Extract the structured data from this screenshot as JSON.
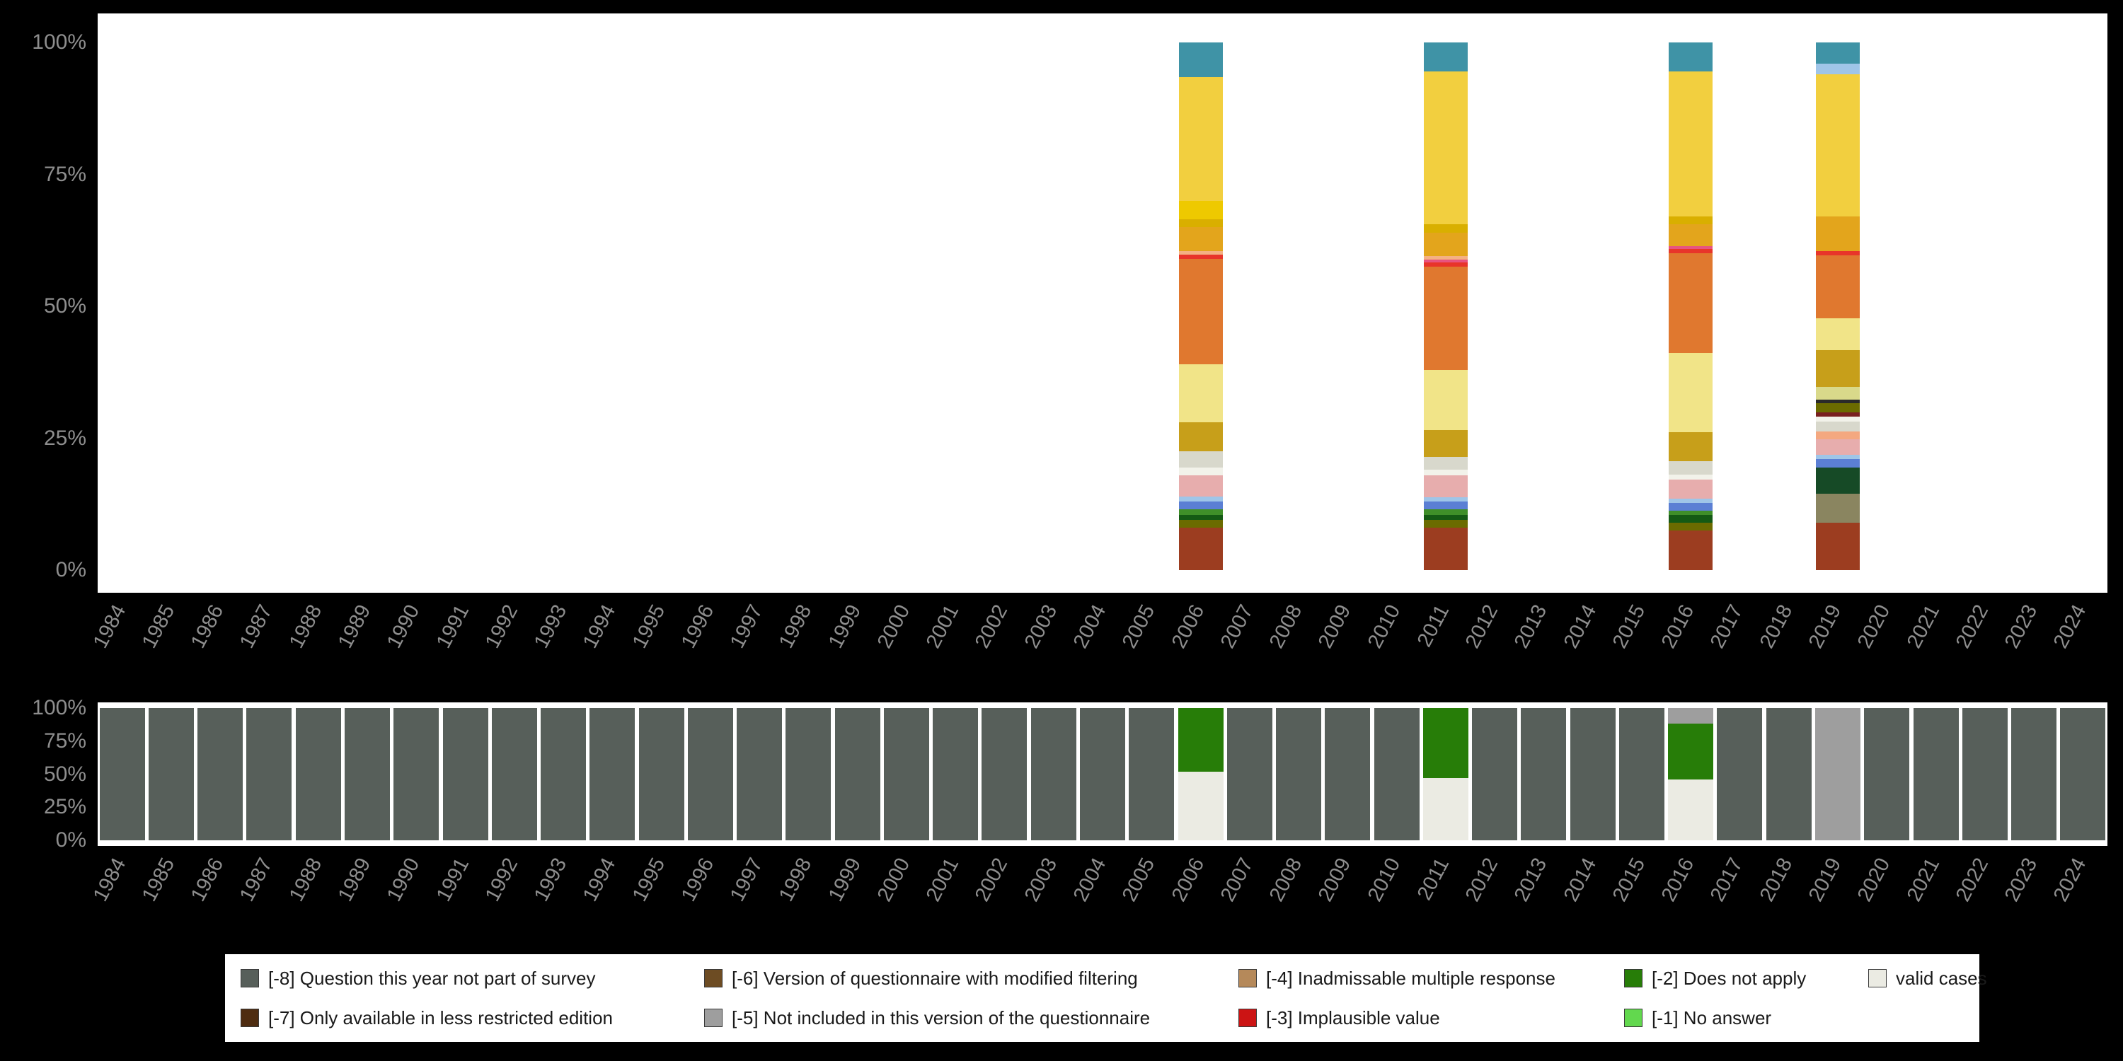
{
  "page": {
    "background": "#000000",
    "panel_background": "#ffffff",
    "axis_text_color": "#8e8e8e"
  },
  "axes": {
    "years": [
      "1984",
      "1985",
      "1986",
      "1987",
      "1988",
      "1989",
      "1990",
      "1991",
      "1992",
      "1993",
      "1994",
      "1995",
      "1996",
      "1997",
      "1998",
      "1999",
      "2000",
      "2001",
      "2002",
      "2003",
      "2004",
      "2005",
      "2006",
      "2007",
      "2008",
      "2009",
      "2010",
      "2011",
      "2012",
      "2013",
      "2014",
      "2015",
      "2016",
      "2017",
      "2018",
      "2019",
      "2020",
      "2021",
      "2022",
      "2023",
      "2024"
    ],
    "pct_ticks": [
      "0%",
      "25%",
      "50%",
      "75%",
      "100%"
    ]
  },
  "legend": {
    "entries": [
      {
        "label": "[-8] Question this year not part of survey",
        "color": "#575f5a",
        "row": 1,
        "col": 1
      },
      {
        "label": "[-7] Only available in less restricted edition",
        "color": "#4e2c10",
        "row": 2,
        "col": 1
      },
      {
        "label": "[-6] Version of questionnaire with modified filtering",
        "color": "#6d4c23",
        "row": 1,
        "col": 2
      },
      {
        "label": "[-5] Not included in this version of the questionnaire",
        "color": "#9e9e9e",
        "row": 2,
        "col": 2
      },
      {
        "label": "[-4] Inadmissable multiple response",
        "color": "#b5895a",
        "row": 1,
        "col": 3
      },
      {
        "label": "[-3] Implausible value",
        "color": "#cc1414",
        "row": 2,
        "col": 3
      },
      {
        "label": "[-2] Does not apply",
        "color": "#277d08",
        "row": 1,
        "col": 4
      },
      {
        "label": "[-1] No answer",
        "color": "#62d84e",
        "row": 2,
        "col": 4
      },
      {
        "label": "valid cases",
        "color": "#ebebe3",
        "row": 1,
        "col": 5
      }
    ]
  },
  "chart_data": [
    {
      "type": "bar",
      "name": "answer-category-distribution-per-year",
      "stacking": "percent",
      "ylim": [
        0,
        100
      ],
      "yticks": [
        "0%",
        "25%",
        "50%",
        "75%",
        "100%"
      ],
      "note": "stacked percentage distribution of answer categories; bars only for years with data; segments listed bottom-to-top",
      "bars": {
        "2006": [
          {
            "color": "#9c3d20",
            "pct": 8
          },
          {
            "color": "#6b6b00",
            "pct": 1.5
          },
          {
            "color": "#145a14",
            "pct": 1
          },
          {
            "color": "#3f8f29",
            "pct": 1
          },
          {
            "color": "#5b7fd4",
            "pct": 1.5
          },
          {
            "color": "#9fc5e8",
            "pct": 1
          },
          {
            "color": "#e7adad",
            "pct": 4
          },
          {
            "color": "#f2f2ea",
            "pct": 1.5
          },
          {
            "color": "#d8d8cc",
            "pct": 3
          },
          {
            "color": "#c79f1a",
            "pct": 5.5
          },
          {
            "color": "#f1e488",
            "pct": 11
          },
          {
            "color": "#e0782f",
            "pct": 20
          },
          {
            "color": "#e8352a",
            "pct": 0.8
          },
          {
            "color": "#f4b183",
            "pct": 0.7
          },
          {
            "color": "#e3a51c",
            "pct": 4.5
          },
          {
            "color": "#d9af00",
            "pct": 1.5
          },
          {
            "color": "#eec900",
            "pct": 3.5
          },
          {
            "color": "#f2cf3f",
            "pct": 23.5
          },
          {
            "color": "#3f93a6",
            "pct": 6.5
          }
        ],
        "2011": [
          {
            "color": "#9c3d20",
            "pct": 8
          },
          {
            "color": "#6b6b00",
            "pct": 1.5
          },
          {
            "color": "#145a14",
            "pct": 1
          },
          {
            "color": "#3f8f29",
            "pct": 1
          },
          {
            "color": "#5b7fd4",
            "pct": 1.5
          },
          {
            "color": "#9fc5e8",
            "pct": 0.8
          },
          {
            "color": "#e7adad",
            "pct": 4.2
          },
          {
            "color": "#f2f2ea",
            "pct": 1
          },
          {
            "color": "#d8d8cc",
            "pct": 2.5
          },
          {
            "color": "#c79f1a",
            "pct": 5
          },
          {
            "color": "#f1e488",
            "pct": 11.5
          },
          {
            "color": "#e0782f",
            "pct": 19.5
          },
          {
            "color": "#e8352a",
            "pct": 0.8
          },
          {
            "color": "#e75480",
            "pct": 0.5
          },
          {
            "color": "#f4b183",
            "pct": 0.7
          },
          {
            "color": "#e3a51c",
            "pct": 4.5
          },
          {
            "color": "#d9af00",
            "pct": 1.5
          },
          {
            "color": "#f2cf3f",
            "pct": 29
          },
          {
            "color": "#3f93a6",
            "pct": 5.5
          }
        ],
        "2016": [
          {
            "color": "#9c3d20",
            "pct": 7.5
          },
          {
            "color": "#6b6b00",
            "pct": 1.5
          },
          {
            "color": "#145a14",
            "pct": 1.5
          },
          {
            "color": "#3f8f29",
            "pct": 0.8
          },
          {
            "color": "#5b7fd4",
            "pct": 1.5
          },
          {
            "color": "#9fc5e8",
            "pct": 0.8
          },
          {
            "color": "#e7adad",
            "pct": 3.5
          },
          {
            "color": "#f2f2ea",
            "pct": 1
          },
          {
            "color": "#d8d8cc",
            "pct": 2.5
          },
          {
            "color": "#c79f1a",
            "pct": 5.5
          },
          {
            "color": "#f1e488",
            "pct": 15
          },
          {
            "color": "#e0782f",
            "pct": 19
          },
          {
            "color": "#e8352a",
            "pct": 0.8
          },
          {
            "color": "#e75480",
            "pct": 0.5
          },
          {
            "color": "#e3a51c",
            "pct": 4.2
          },
          {
            "color": "#d9af00",
            "pct": 1.5
          },
          {
            "color": "#f2cf3f",
            "pct": 27.4
          },
          {
            "color": "#3f93a6",
            "pct": 5.5
          }
        ],
        "2019": [
          {
            "color": "#9c3d20",
            "pct": 9
          },
          {
            "color": "#8a8560",
            "pct": 5.5
          },
          {
            "color": "#164a26",
            "pct": 5
          },
          {
            "color": "#5b7fd4",
            "pct": 1.5
          },
          {
            "color": "#9fc5e8",
            "pct": 0.8
          },
          {
            "color": "#e7adad",
            "pct": 3
          },
          {
            "color": "#f4a880",
            "pct": 1.5
          },
          {
            "color": "#d8d8cc",
            "pct": 1.8
          },
          {
            "color": "#f2f2ea",
            "pct": 1
          },
          {
            "color": "#7a2020",
            "pct": 0.8
          },
          {
            "color": "#6b6b00",
            "pct": 1.8
          },
          {
            "color": "#2a2a2a",
            "pct": 0.6
          },
          {
            "color": "#d9d98a",
            "pct": 2.5
          },
          {
            "color": "#c79f1a",
            "pct": 6.9
          },
          {
            "color": "#f1e488",
            "pct": 6
          },
          {
            "color": "#e0782f",
            "pct": 12
          },
          {
            "color": "#e8352a",
            "pct": 0.8
          },
          {
            "color": "#e3a51c",
            "pct": 6.5
          },
          {
            "color": "#f2cf3f",
            "pct": 27
          },
          {
            "color": "#9fc5e8",
            "pct": 2
          },
          {
            "color": "#3f93a6",
            "pct": 4
          }
        ]
      }
    },
    {
      "type": "bar",
      "name": "missing-vs-valid-cases-per-year",
      "stacking": "percent",
      "ylim": [
        0,
        100
      ],
      "yticks": [
        "0%",
        "25%",
        "50%",
        "75%",
        "100%"
      ],
      "segment_colors": {
        "[-8]": "#575f5a",
        "[-7]": "#4e2c10",
        "[-6]": "#6d4c23",
        "[-5]": "#9e9e9e",
        "[-4]": "#b5895a",
        "[-3]": "#cc1414",
        "[-2]": "#277d08",
        "[-1]": "#62d84e",
        "valid": "#ebebe3"
      },
      "default_stack": [
        {
          "key": "[-8]",
          "pct": 100
        }
      ],
      "overrides": {
        "2006": [
          {
            "key": "valid",
            "pct": 52
          },
          {
            "key": "[-2]",
            "pct": 48
          }
        ],
        "2011": [
          {
            "key": "valid",
            "pct": 47
          },
          {
            "key": "[-2]",
            "pct": 53
          }
        ],
        "2016": [
          {
            "key": "valid",
            "pct": 46
          },
          {
            "key": "[-2]",
            "pct": 42
          },
          {
            "key": "[-5]",
            "pct": 12
          }
        ],
        "2019": [
          {
            "key": "[-5]",
            "pct": 100
          }
        ]
      }
    }
  ]
}
